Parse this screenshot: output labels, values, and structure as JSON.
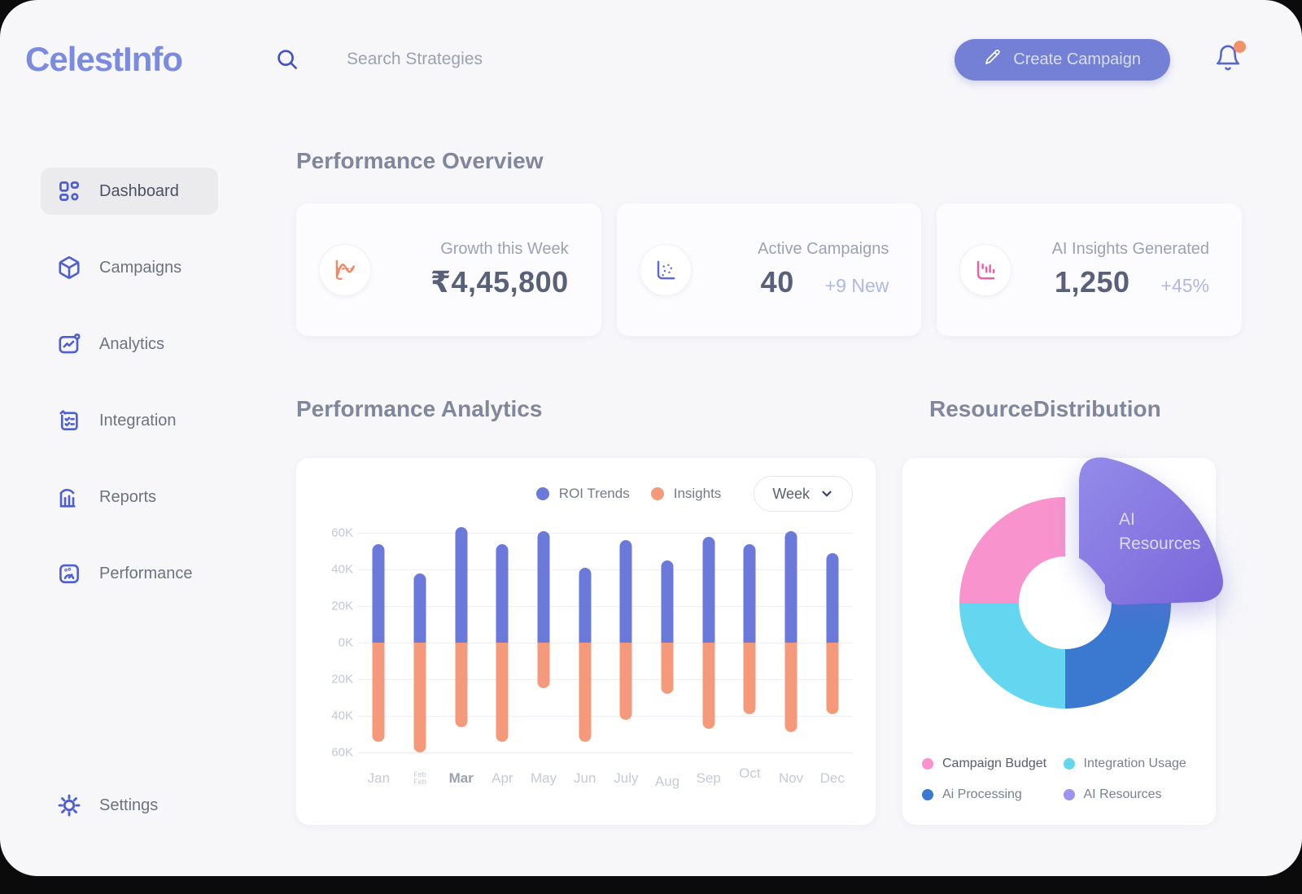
{
  "app": {
    "brand": "CelestInfo"
  },
  "topbar": {
    "search_placeholder": "Search Strategies",
    "create_button": "Create Campaign"
  },
  "sidebar": {
    "items": [
      {
        "label": "Dashboard",
        "icon": "dashboard-grid-icon",
        "active": true
      },
      {
        "label": "Campaigns",
        "icon": "cube-icon",
        "active": false
      },
      {
        "label": "Analytics",
        "icon": "line-chart-icon",
        "active": false
      },
      {
        "label": "Integration",
        "icon": "checklist-icon",
        "active": false
      },
      {
        "label": "Reports",
        "icon": "bar-chart-icon",
        "active": false
      },
      {
        "label": "Performance",
        "icon": "gauge-icon",
        "active": false
      }
    ],
    "settings": {
      "label": "Settings",
      "icon": "gear-icon"
    }
  },
  "overview": {
    "title": "Performance Overview",
    "cards": [
      {
        "label": "Growth this Week",
        "value": "₹4,45,800",
        "delta": "",
        "icon": "line-chart-icon",
        "accent": "#f2855e"
      },
      {
        "label": "Active Campaigns",
        "value": "40",
        "delta": "+9 New",
        "icon": "scatter-plot-icon",
        "accent": "#5a6bd8"
      },
      {
        "label": "AI Insights Generated",
        "value": "1,250",
        "delta": "+45%",
        "icon": "bar-chart-icon",
        "accent": "#f05fa0"
      }
    ]
  },
  "analytics": {
    "title": "Performance Analytics",
    "range_selector": "Week"
  },
  "distribution": {
    "title": "ResourceDistribution",
    "callout": {
      "line1": "AI",
      "line2": "Resources"
    }
  },
  "chart_data": [
    {
      "type": "bar",
      "title": "Performance Analytics",
      "orientation": "mirrored",
      "categories": [
        "Jan",
        "Feb",
        "Mar",
        "Apr",
        "May",
        "Jun",
        "July",
        "Aug",
        "Sep",
        "Oct",
        "Nov",
        "Dec"
      ],
      "series": [
        {
          "name": "ROI Trends",
          "color": "#6b79db",
          "direction": "up",
          "values": [
            54,
            38,
            63,
            54,
            61,
            41,
            56,
            45,
            58,
            54,
            61,
            49
          ]
        },
        {
          "name": "Insights",
          "color": "#f49a7b",
          "direction": "down",
          "values": [
            54,
            60,
            46,
            54,
            25,
            54,
            42,
            28,
            47,
            39,
            49,
            39
          ]
        }
      ],
      "unit": "K",
      "ylim": [
        0,
        60
      ],
      "yticks": [
        "60K",
        "40K",
        "20K",
        "0K",
        "20K",
        "40K",
        "60K"
      ],
      "grid": true,
      "legend_position": "top-right",
      "range_selector": "Week"
    },
    {
      "type": "pie",
      "donut": true,
      "title": "ResourceDistribution",
      "labels": [
        "Campaign Budget",
        "Integration Usage",
        "Ai Processing",
        "AI Resources"
      ],
      "values": [
        25,
        25,
        25,
        25
      ],
      "colors": [
        "#f893cd",
        "#65d6f0",
        "#3b79d1",
        "#9c92f0"
      ],
      "highlighted_slice": "AI Resources",
      "highlight_gradient": [
        "#938be9",
        "#7a66d9"
      ],
      "legend_position": "bottom"
    }
  ]
}
